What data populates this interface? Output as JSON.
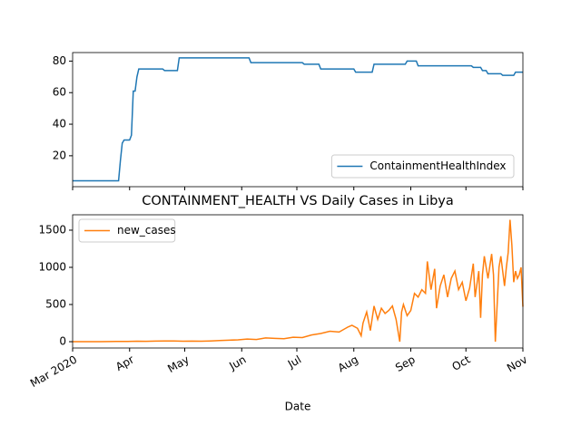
{
  "chart_data": [
    {
      "type": "line",
      "x": [
        0,
        25,
        26,
        27,
        28,
        31,
        32,
        33,
        34,
        35,
        36,
        49,
        50,
        57,
        58,
        96,
        97,
        125,
        126,
        134,
        135,
        153,
        154,
        163,
        164,
        181,
        182,
        187,
        188,
        217,
        218,
        222,
        223,
        225,
        226,
        233,
        234,
        240,
        241,
        245
      ],
      "series": [
        {
          "name": "ContainmentHealthIndex",
          "color": "#1f77b4",
          "values": [
            4.17,
            4.17,
            17,
            28,
            30,
            30,
            33,
            61,
            61,
            70,
            75,
            75,
            74,
            74,
            82,
            82,
            79,
            79,
            78,
            78,
            75,
            75,
            73,
            73,
            78,
            78,
            80,
            80,
            77,
            77,
            76,
            76,
            74,
            74,
            72,
            72,
            71,
            71,
            73,
            73
          ]
        }
      ],
      "xlim": [
        0,
        245
      ],
      "xticks": [
        0,
        31,
        61,
        92,
        122,
        153,
        184,
        214,
        245
      ],
      "ylim": [
        0.4,
        85.4
      ],
      "yticks": [
        20,
        40,
        60,
        80
      ],
      "legend": "lower right"
    },
    {
      "type": "line",
      "title": "CONTAINMENT_HEALTH VS Daily Cases in Libya",
      "x_label": "Date",
      "x": [
        0,
        5,
        10,
        15,
        20,
        25,
        30,
        35,
        40,
        45,
        50,
        55,
        60,
        65,
        70,
        75,
        80,
        85,
        90,
        95,
        100,
        105,
        110,
        115,
        120,
        125,
        130,
        135,
        140,
        145,
        150,
        152,
        155,
        157,
        158,
        160,
        162,
        164,
        166,
        168,
        170,
        172,
        174,
        176,
        178,
        179,
        180,
        182,
        184,
        186,
        188,
        190,
        192,
        193,
        195,
        197,
        198,
        200,
        202,
        204,
        206,
        208,
        210,
        212,
        214,
        216,
        218,
        219,
        221,
        222,
        223,
        224,
        226,
        228,
        229,
        230,
        232,
        233,
        235,
        236,
        237,
        238,
        239,
        240,
        241,
        242,
        243,
        244,
        245
      ],
      "series": [
        {
          "name": "new_cases",
          "color": "#ff7f0e",
          "values": [
            0,
            0,
            0,
            1,
            2,
            3,
            4,
            6,
            5,
            8,
            10,
            9,
            6,
            8,
            7,
            10,
            15,
            20,
            25,
            35,
            30,
            50,
            45,
            40,
            60,
            55,
            90,
            110,
            140,
            130,
            200,
            220,
            180,
            80,
            250,
            400,
            150,
            480,
            300,
            450,
            380,
            420,
            480,
            300,
            0,
            400,
            500,
            350,
            420,
            650,
            600,
            700,
            650,
            1080,
            700,
            980,
            450,
            750,
            900,
            600,
            850,
            950,
            700,
            800,
            550,
            720,
            1050,
            600,
            950,
            320,
            900,
            1150,
            850,
            1180,
            900,
            0,
            1000,
            1150,
            750,
            1000,
            1200,
            1640,
            1300,
            800,
            950,
            850,
            900,
            1000,
            470
          ]
        }
      ],
      "xlim": [
        0,
        245
      ],
      "xticks": [
        {
          "value": 0,
          "label": "Mar 2020"
        },
        {
          "value": 31,
          "label": "Apr"
        },
        {
          "value": 61,
          "label": "May"
        },
        {
          "value": 92,
          "label": "Jun"
        },
        {
          "value": 122,
          "label": "Jul"
        },
        {
          "value": 153,
          "label": "Aug"
        },
        {
          "value": 184,
          "label": "Sep"
        },
        {
          "value": 214,
          "label": "Oct"
        },
        {
          "value": 245,
          "label": "Nov"
        }
      ],
      "ylim": [
        -85,
        1707
      ],
      "yticks": [
        0,
        500,
        1000,
        1500
      ],
      "legend": "upper left"
    }
  ]
}
